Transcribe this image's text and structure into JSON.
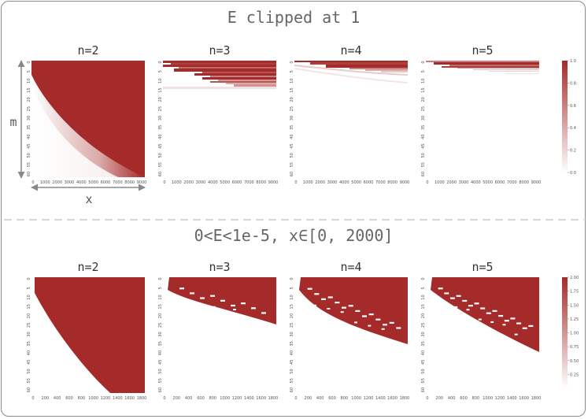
{
  "chart_data": [
    {
      "type": "heatmap",
      "title": "E clipped at 1",
      "xlabel": "x",
      "ylabel": "m",
      "panels": [
        {
          "title": "n=2",
          "xticks": [
            "0",
            "1000",
            "2000",
            "3000",
            "4000",
            "5000",
            "6000",
            "7000",
            "8000",
            "9000"
          ],
          "yticks": [
            "0",
            "5",
            "10",
            "15",
            "20",
            "25",
            "30",
            "35",
            "40",
            "45",
            "50",
            "55",
            "60"
          ]
        },
        {
          "title": "n=3",
          "xticks": [
            "0",
            "1000",
            "2000",
            "3000",
            "4000",
            "5000",
            "6000",
            "7000",
            "8000",
            "9000"
          ],
          "yticks": [
            "0",
            "5",
            "10",
            "15",
            "20",
            "25",
            "30",
            "35",
            "40",
            "45",
            "50",
            "55",
            "60"
          ]
        },
        {
          "title": "n=4",
          "xticks": [
            "0",
            "1000",
            "2000",
            "3000",
            "4000",
            "5000",
            "6000",
            "7000",
            "8000",
            "9000"
          ],
          "yticks": [
            "0",
            "5",
            "10",
            "15",
            "20",
            "25",
            "30",
            "35",
            "40",
            "45",
            "50",
            "55",
            "60"
          ]
        },
        {
          "title": "n=5",
          "xticks": [
            "0",
            "1000",
            "2000",
            "3000",
            "4000",
            "5000",
            "6000",
            "7000",
            "8000",
            "9000"
          ],
          "yticks": [
            "0",
            "5",
            "10",
            "15",
            "20",
            "25",
            "30",
            "35",
            "40",
            "45",
            "50",
            "55",
            "60"
          ]
        }
      ],
      "colorbar": {
        "ticks": [
          "0.0",
          "0.2",
          "0.4",
          "0.6",
          "0.8",
          "1.0"
        ],
        "range": [
          0,
          1
        ]
      },
      "colors": {
        "high": "#a52a2a",
        "low": "#ffffff"
      }
    },
    {
      "type": "heatmap",
      "title": "0<E<1e-5, x∈[0, 2000]",
      "xlabel": "",
      "ylabel": "",
      "panels": [
        {
          "title": "n=2",
          "xticks": [
            "0",
            "200",
            "400",
            "600",
            "800",
            "1000",
            "1200",
            "1400",
            "1600",
            "1800"
          ],
          "yticks": [
            "0",
            "5",
            "10",
            "15",
            "20",
            "25",
            "30",
            "35",
            "40",
            "45",
            "50",
            "55",
            "60"
          ]
        },
        {
          "title": "n=3",
          "xticks": [
            "0",
            "200",
            "400",
            "600",
            "800",
            "1000",
            "1200",
            "1400",
            "1600",
            "1800"
          ],
          "yticks": [
            "0",
            "5",
            "10",
            "15",
            "20",
            "25",
            "30",
            "35",
            "40",
            "45",
            "50",
            "55",
            "60"
          ]
        },
        {
          "title": "n=4",
          "xticks": [
            "0",
            "200",
            "400",
            "600",
            "800",
            "1000",
            "1200",
            "1400",
            "1600",
            "1800"
          ],
          "yticks": [
            "0",
            "5",
            "10",
            "15",
            "20",
            "25",
            "30",
            "35",
            "40",
            "45",
            "50",
            "55",
            "60"
          ]
        },
        {
          "title": "n=5",
          "xticks": [
            "0",
            "200",
            "400",
            "600",
            "800",
            "1000",
            "1200",
            "1400",
            "1600",
            "1800"
          ],
          "yticks": [
            "0",
            "5",
            "10",
            "15",
            "20",
            "25",
            "30",
            "35",
            "40",
            "45",
            "50",
            "55",
            "60"
          ]
        }
      ],
      "colorbar": {
        "ticks": [
          "0.25",
          "0.50",
          "0.75",
          "1.00",
          "1.25",
          "1.50",
          "1.75",
          "2.00"
        ],
        "range": [
          0,
          2
        ]
      },
      "colors": {
        "high": "#a52a2a",
        "low": "#ffffff"
      }
    }
  ]
}
